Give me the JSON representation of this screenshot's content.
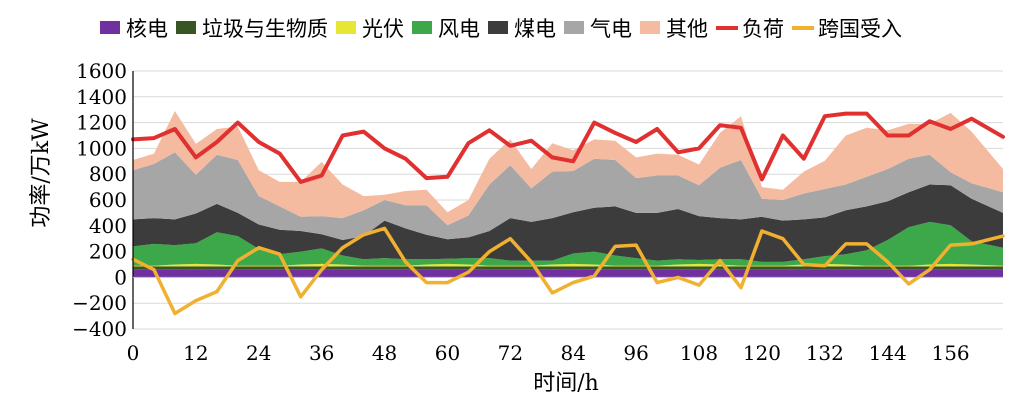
{
  "chart_data": {
    "type": "area",
    "xlabel": "时间/h",
    "ylabel": "功率/万kW",
    "xlim": [
      0,
      166
    ],
    "ylim": [
      -400,
      1600
    ],
    "x_ticks": [
      0,
      12,
      24,
      36,
      48,
      60,
      72,
      84,
      96,
      108,
      120,
      132,
      144,
      156
    ],
    "y_ticks": [
      -400,
      -200,
      0,
      200,
      400,
      600,
      800,
      1000,
      1200,
      1400,
      1600
    ],
    "grid": "horizontal",
    "legend_position": "top",
    "x": [
      0,
      4,
      8,
      12,
      16,
      20,
      24,
      28,
      32,
      36,
      40,
      44,
      48,
      52,
      56,
      60,
      64,
      68,
      72,
      76,
      80,
      84,
      88,
      92,
      96,
      100,
      104,
      108,
      112,
      116,
      120,
      124,
      128,
      132,
      136,
      140,
      144,
      148,
      152,
      156,
      160,
      166
    ],
    "stacked_series": [
      {
        "name": "核电",
        "color": "#7030a0",
        "values": [
          60,
          60,
          60,
          60,
          60,
          60,
          60,
          60,
          60,
          60,
          60,
          60,
          60,
          60,
          60,
          60,
          60,
          60,
          60,
          60,
          60,
          60,
          60,
          60,
          60,
          60,
          60,
          60,
          60,
          60,
          60,
          60,
          60,
          60,
          60,
          60,
          60,
          60,
          60,
          60,
          60,
          60
        ]
      },
      {
        "name": "垃圾与生物质",
        "color": "#375623",
        "values": [
          25,
          25,
          25,
          25,
          25,
          25,
          25,
          25,
          25,
          25,
          25,
          25,
          25,
          25,
          25,
          25,
          25,
          25,
          25,
          25,
          25,
          25,
          25,
          25,
          25,
          25,
          25,
          25,
          25,
          25,
          25,
          25,
          25,
          25,
          25,
          25,
          25,
          25,
          25,
          25,
          25,
          25
        ]
      },
      {
        "name": "光伏",
        "color": "#e6e633",
        "values": [
          5,
          5,
          15,
          20,
          15,
          5,
          5,
          5,
          15,
          20,
          15,
          5,
          5,
          5,
          15,
          20,
          15,
          5,
          5,
          5,
          15,
          20,
          15,
          5,
          5,
          5,
          15,
          20,
          15,
          5,
          5,
          5,
          15,
          20,
          15,
          5,
          5,
          5,
          15,
          20,
          15,
          5
        ]
      },
      {
        "name": "风电",
        "color": "#3da84a",
        "values": [
          150,
          170,
          150,
          160,
          250,
          230,
          130,
          90,
          100,
          120,
          70,
          50,
          60,
          50,
          40,
          40,
          50,
          60,
          40,
          40,
          30,
          80,
          100,
          80,
          60,
          40,
          40,
          30,
          40,
          50,
          30,
          30,
          40,
          60,
          80,
          120,
          200,
          300,
          330,
          300,
          180,
          140
        ]
      },
      {
        "name": "煤电",
        "color": "#3c3c3c",
        "values": [
          210,
          200,
          200,
          230,
          220,
          180,
          190,
          190,
          160,
          110,
          120,
          180,
          290,
          240,
          190,
          150,
          160,
          210,
          330,
          300,
          330,
          320,
          340,
          380,
          350,
          370,
          390,
          340,
          320,
          310,
          350,
          320,
          310,
          300,
          340,
          340,
          300,
          270,
          290,
          310,
          330,
          270
        ]
      },
      {
        "name": "气电",
        "color": "#a6a6a6",
        "values": [
          380,
          420,
          520,
          300,
          380,
          410,
          220,
          180,
          110,
          140,
          170,
          200,
          160,
          180,
          230,
          110,
          170,
          360,
          410,
          260,
          360,
          320,
          380,
          360,
          270,
          290,
          260,
          240,
          390,
          460,
          140,
          160,
          200,
          220,
          200,
          230,
          250,
          260,
          230,
          100,
          120,
          160
        ]
      },
      {
        "name": "其他",
        "color": "#f4bba1",
        "values": [
          80,
          80,
          320,
          240,
          200,
          260,
          200,
          190,
          270,
          420,
          260,
          110,
          40,
          110,
          120,
          100,
          120,
          200,
          200,
          150,
          220,
          160,
          150,
          150,
          160,
          170,
          160,
          160,
          270,
          340,
          90,
          80,
          170,
          220,
          380,
          380,
          300,
          270,
          240,
          460,
          400,
          180
        ]
      }
    ],
    "line_series": [
      {
        "name": "负荷",
        "color": "#e03030",
        "values": [
          1070,
          1080,
          1150,
          930,
          1050,
          1200,
          1050,
          960,
          740,
          790,
          1100,
          1130,
          1000,
          920,
          770,
          780,
          1040,
          1140,
          1020,
          1060,
          930,
          900,
          1200,
          1120,
          1050,
          1150,
          970,
          1000,
          1180,
          1160,
          760,
          1100,
          920,
          1250,
          1270,
          1270,
          1100,
          1100,
          1210,
          1150,
          1230,
          1090
        ]
      },
      {
        "name": "跨国受入",
        "color": "#f0b030",
        "values": [
          140,
          60,
          -280,
          -180,
          -110,
          130,
          230,
          180,
          -150,
          60,
          230,
          330,
          380,
          120,
          -40,
          -40,
          40,
          200,
          300,
          120,
          -120,
          -40,
          10,
          240,
          250,
          -40,
          0,
          -60,
          130,
          -80,
          360,
          300,
          100,
          90,
          260,
          260,
          120,
          -50,
          60,
          250,
          260,
          320
        ]
      }
    ]
  }
}
